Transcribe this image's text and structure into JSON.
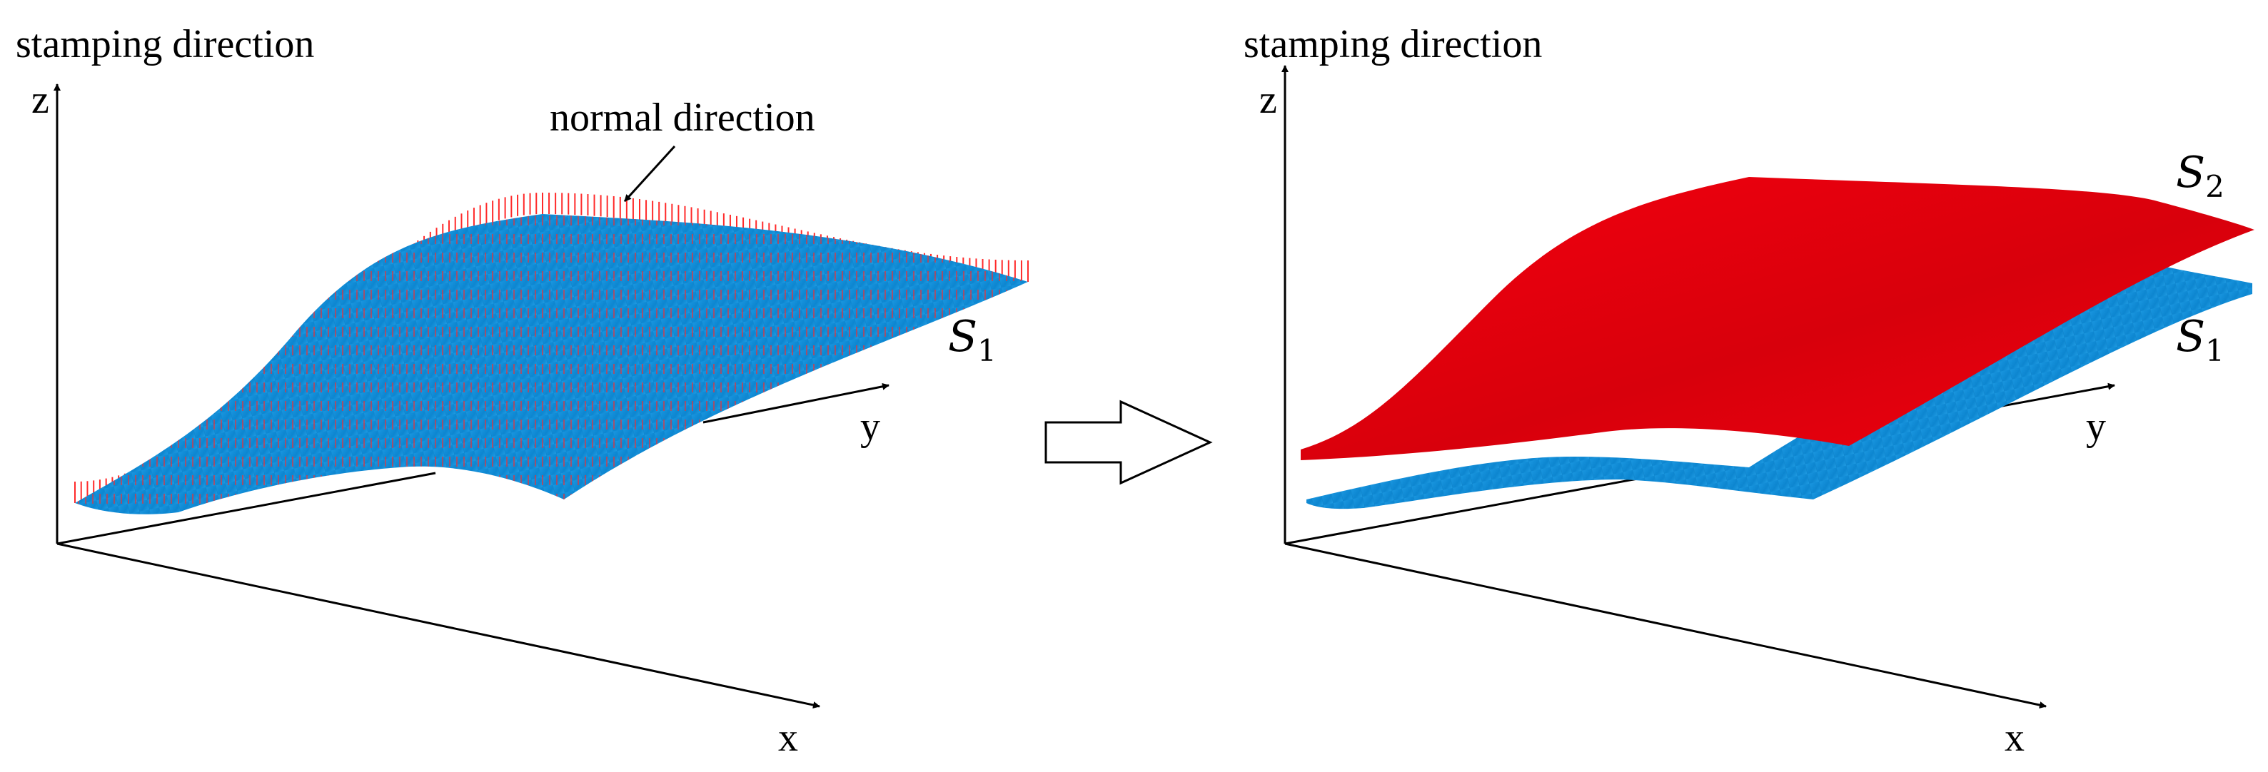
{
  "colors": {
    "surface_s1": "#0d8bd6",
    "surface_s2": "#f0000f",
    "normal_vectors": "#ff2a2a",
    "axes": "#000000"
  },
  "left_panel": {
    "title": "stamping direction",
    "annotation": "normal direction",
    "surface_label_main": "S",
    "surface_label_sub": "1",
    "axis_z": "z",
    "axis_y": "y",
    "axis_x": "x"
  },
  "arrow": {
    "icon": "hollow-right-arrow-icon"
  },
  "right_panel": {
    "title": "stamping direction",
    "surface_top_main": "S",
    "surface_top_sub": "2",
    "surface_bottom_main": "S",
    "surface_bottom_sub": "1",
    "axis_z": "z",
    "axis_y": "y",
    "axis_x": "x"
  }
}
